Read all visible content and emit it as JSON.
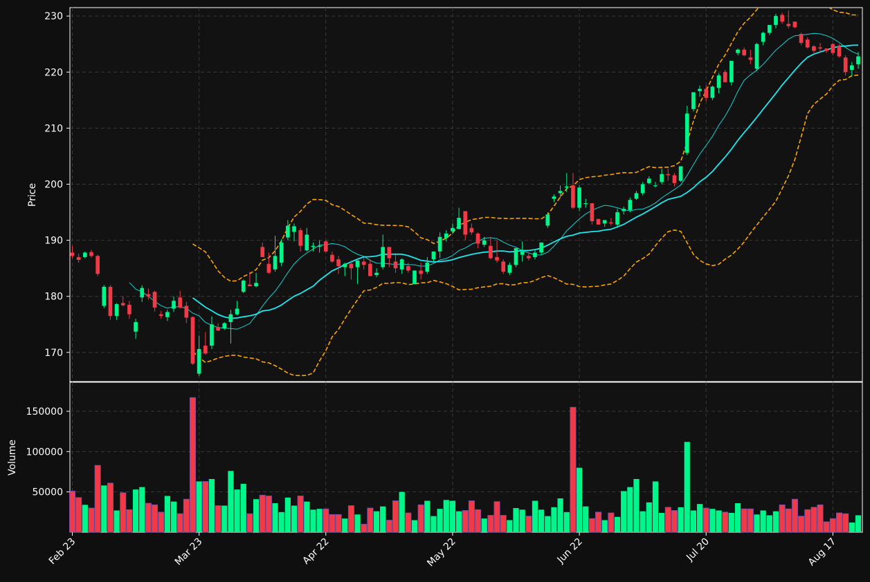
{
  "chart_data": {
    "type": "candlestick",
    "panels": {
      "price": {
        "ylabel": "Price",
        "ylim": [
          164.8,
          231.5
        ],
        "yticks": [
          170,
          180,
          190,
          200,
          210,
          220,
          230
        ]
      },
      "volume": {
        "ylabel": "Volume",
        "ylim": [
          0,
          186000
        ],
        "yticks": [
          50000,
          100000,
          150000
        ]
      }
    },
    "xticks": [
      {
        "index": 0,
        "label": "Feb 23"
      },
      {
        "index": 20,
        "label": "Mar 23"
      },
      {
        "index": 40,
        "label": "Apr 22"
      },
      {
        "index": 60,
        "label": "May 22"
      },
      {
        "index": 80,
        "label": "Jun 22"
      },
      {
        "index": 100,
        "label": "Jul 20"
      },
      {
        "index": 120,
        "label": "Aug 17"
      }
    ],
    "grid": true,
    "colors": {
      "up": "#00f58a",
      "down": "#f03a47",
      "ma_fast": "#17d4d4",
      "ma_slow": "#1ee8f0",
      "bands": "#ffa500",
      "background": "#121212",
      "grid": "#3a3a3a"
    },
    "candles": [
      [
        187.8,
        189.0,
        186.8,
        187.2
      ],
      [
        187.0,
        187.6,
        186.0,
        186.5
      ],
      [
        187.0,
        188.0,
        186.8,
        187.8
      ],
      [
        187.9,
        188.3,
        186.9,
        187.2
      ],
      [
        187.2,
        187.4,
        183.6,
        184.0
      ],
      [
        178.3,
        182.0,
        177.9,
        181.7
      ],
      [
        181.7,
        182.0,
        175.8,
        176.5
      ],
      [
        176.5,
        178.8,
        175.8,
        178.6
      ],
      [
        178.8,
        180.0,
        178.2,
        178.4
      ],
      [
        178.5,
        179.2,
        176.0,
        176.8
      ],
      [
        173.7,
        176.0,
        172.4,
        175.4
      ],
      [
        179.8,
        182.0,
        179.0,
        181.5
      ],
      [
        180.4,
        181.4,
        179.4,
        180.0
      ],
      [
        180.8,
        181.0,
        177.3,
        178.0
      ],
      [
        176.8,
        177.4,
        176.0,
        176.5
      ],
      [
        176.3,
        177.6,
        175.6,
        177.2
      ],
      [
        177.8,
        180.0,
        177.2,
        179.2
      ],
      [
        179.8,
        181.0,
        177.8,
        178.0
      ],
      [
        178.3,
        179.0,
        175.2,
        176.2
      ],
      [
        176.3,
        176.4,
        167.8,
        168.0
      ],
      [
        166.2,
        173.0,
        165.8,
        170.6
      ],
      [
        171.2,
        173.6,
        169.6,
        169.8
      ],
      [
        171.2,
        176.4,
        170.6,
        175.0
      ],
      [
        174.5,
        175.2,
        173.8,
        173.9
      ],
      [
        174.3,
        175.4,
        174.0,
        175.2
      ],
      [
        175.4,
        177.6,
        171.6,
        176.8
      ],
      [
        176.8,
        179.2,
        176.6,
        177.8
      ],
      [
        180.8,
        183.0,
        180.6,
        182.8
      ],
      [
        182.1,
        184.4,
        181.8,
        181.8
      ],
      [
        181.8,
        184.2,
        181.6,
        182.4
      ],
      [
        188.8,
        189.6,
        187.0,
        187.0
      ],
      [
        185.8,
        187.8,
        184.0,
        184.2
      ],
      [
        184.8,
        190.8,
        184.4,
        187.2
      ],
      [
        186.0,
        190.2,
        185.4,
        189.6
      ],
      [
        190.5,
        193.6,
        190.0,
        192.6
      ],
      [
        191.5,
        193.0,
        189.8,
        192.5
      ],
      [
        191.8,
        192.2,
        188.0,
        189.0
      ],
      [
        188.2,
        192.2,
        188.0,
        191.0
      ],
      [
        188.8,
        189.6,
        188.0,
        189.0
      ],
      [
        189.0,
        190.0,
        187.8,
        189.0
      ],
      [
        189.8,
        190.0,
        187.8,
        188.0
      ],
      [
        187.4,
        188.0,
        186.0,
        186.2
      ],
      [
        186.6,
        187.2,
        184.0,
        185.4
      ],
      [
        185.2,
        186.0,
        183.6,
        185.8
      ],
      [
        185.8,
        186.4,
        183.0,
        185.0
      ],
      [
        185.2,
        185.8,
        182.2,
        186.4
      ],
      [
        186.2,
        187.0,
        184.8,
        185.6
      ],
      [
        185.8,
        186.6,
        183.6,
        183.6
      ],
      [
        183.8,
        185.0,
        183.4,
        184.2
      ],
      [
        185.2,
        191.0,
        184.8,
        188.8
      ],
      [
        188.8,
        188.6,
        185.2,
        186.8
      ],
      [
        186.2,
        187.4,
        184.2,
        185.0
      ],
      [
        184.8,
        186.8,
        184.0,
        186.6
      ],
      [
        185.4,
        186.0,
        184.2,
        184.6
      ],
      [
        182.2,
        184.6,
        182.2,
        184.6
      ],
      [
        184.6,
        186.0,
        183.0,
        184.0
      ],
      [
        184.4,
        187.0,
        184.0,
        186.0
      ],
      [
        186.6,
        188.0,
        186.0,
        188.0
      ],
      [
        188.0,
        191.4,
        186.8,
        190.6
      ],
      [
        190.4,
        191.8,
        189.8,
        191.2
      ],
      [
        191.6,
        193.0,
        191.2,
        192.2
      ],
      [
        192.0,
        195.8,
        192.0,
        194.0
      ],
      [
        195.2,
        195.2,
        190.0,
        191.0
      ],
      [
        192.2,
        193.0,
        191.0,
        191.4
      ],
      [
        191.2,
        191.4,
        188.6,
        189.4
      ],
      [
        189.2,
        190.6,
        188.8,
        190.0
      ],
      [
        189.0,
        190.6,
        186.6,
        186.8
      ],
      [
        187.0,
        190.0,
        186.0,
        186.4
      ],
      [
        186.2,
        186.6,
        184.0,
        184.4
      ],
      [
        184.2,
        186.0,
        183.8,
        185.6
      ],
      [
        185.6,
        188.6,
        185.2,
        188.6
      ],
      [
        187.4,
        189.8,
        186.2,
        188.0
      ],
      [
        187.2,
        187.8,
        186.4,
        186.8
      ],
      [
        187.0,
        188.4,
        186.6,
        187.8
      ],
      [
        187.8,
        189.6,
        187.4,
        189.6
      ],
      [
        192.6,
        195.0,
        192.2,
        194.6
      ],
      [
        197.4,
        198.2,
        196.8,
        197.8
      ],
      [
        198.4,
        199.8,
        197.6,
        198.8
      ],
      [
        199.4,
        202.0,
        198.6,
        199.6
      ],
      [
        199.8,
        202.0,
        195.6,
        195.8
      ],
      [
        195.8,
        199.8,
        195.2,
        199.4
      ],
      [
        196.6,
        197.4,
        195.8,
        196.6
      ],
      [
        196.6,
        196.2,
        192.8,
        193.4
      ],
      [
        193.8,
        193.6,
        192.8,
        192.8
      ],
      [
        193.0,
        193.6,
        192.4,
        193.6
      ],
      [
        193.2,
        194.0,
        192.6,
        193.0
      ],
      [
        192.8,
        195.6,
        192.4,
        195.0
      ],
      [
        195.2,
        196.0,
        194.6,
        195.6
      ],
      [
        195.4,
        197.6,
        195.0,
        197.2
      ],
      [
        197.4,
        198.8,
        197.2,
        198.4
      ],
      [
        198.4,
        200.4,
        198.0,
        200.0
      ],
      [
        200.2,
        201.4,
        200.0,
        201.0
      ],
      [
        199.8,
        200.4,
        199.4,
        199.8
      ],
      [
        200.4,
        202.8,
        200.0,
        201.8
      ],
      [
        201.8,
        202.8,
        200.6,
        201.6
      ],
      [
        201.6,
        202.0,
        199.6,
        200.2
      ],
      [
        200.6,
        203.2,
        200.4,
        203.2
      ],
      [
        205.6,
        214.0,
        205.2,
        212.6
      ],
      [
        213.4,
        216.4,
        213.0,
        216.4
      ],
      [
        216.6,
        217.6,
        215.6,
        217.0
      ],
      [
        217.0,
        217.6,
        214.8,
        215.4
      ],
      [
        215.4,
        217.6,
        215.0,
        217.4
      ],
      [
        217.2,
        219.8,
        216.2,
        219.4
      ],
      [
        220.0,
        220.4,
        218.2,
        218.2
      ],
      [
        218.2,
        222.0,
        217.6,
        222.0
      ],
      [
        223.4,
        224.2,
        223.0,
        224.0
      ],
      [
        224.0,
        224.4,
        222.8,
        223.0
      ],
      [
        222.6,
        224.0,
        221.4,
        222.2
      ],
      [
        220.6,
        225.2,
        220.2,
        225.0
      ],
      [
        225.4,
        227.2,
        224.8,
        227.0
      ],
      [
        227.0,
        228.4,
        226.6,
        228.4
      ],
      [
        228.4,
        230.4,
        227.8,
        230.0
      ],
      [
        230.2,
        230.6,
        228.6,
        229.0
      ],
      [
        228.6,
        231.0,
        227.8,
        228.2
      ],
      [
        229.0,
        228.8,
        227.8,
        228.0
      ],
      [
        226.8,
        227.0,
        224.8,
        225.2
      ],
      [
        225.8,
        226.2,
        224.2,
        224.4
      ],
      [
        224.6,
        224.8,
        223.4,
        223.8
      ],
      [
        224.4,
        225.2,
        223.6,
        224.2
      ],
      [
        224.2,
        224.0,
        223.4,
        223.8
      ],
      [
        225.0,
        225.2,
        223.0,
        223.4
      ],
      [
        224.6,
        225.0,
        222.6,
        222.8
      ],
      [
        222.6,
        223.0,
        219.4,
        220.0
      ],
      [
        220.4,
        221.8,
        219.2,
        221.2
      ],
      [
        221.4,
        223.6,
        220.6,
        222.8
      ]
    ],
    "volume": [
      51000,
      43000,
      34000,
      30000,
      83000,
      58000,
      61000,
      27000,
      49000,
      28000,
      53000,
      56000,
      36000,
      34000,
      25000,
      45000,
      38000,
      23000,
      41000,
      167000,
      63000,
      63000,
      66000,
      33000,
      33000,
      76000,
      53000,
      60000,
      23000,
      41000,
      46000,
      45000,
      36000,
      25000,
      43000,
      33000,
      45000,
      38000,
      28000,
      29000,
      29000,
      22000,
      22000,
      17000,
      33000,
      22000,
      10000,
      30000,
      26000,
      32000,
      15000,
      39000,
      50000,
      24000,
      15000,
      34000,
      39000,
      20000,
      29000,
      40000,
      39000,
      26000,
      27000,
      39000,
      28000,
      17000,
      21000,
      38000,
      21000,
      15000,
      30000,
      28000,
      20000,
      39000,
      28000,
      20000,
      31000,
      42000,
      25000,
      155000,
      80000,
      32000,
      17000,
      25000,
      15000,
      24000,
      19000,
      51000,
      56000,
      66000,
      26000,
      37000,
      63000,
      24000,
      31000,
      27000,
      31000,
      112000,
      27000,
      35000,
      30000,
      29000,
      27000,
      25000,
      24000,
      36000,
      29000,
      29000,
      22000,
      27000,
      21000,
      26000,
      34000,
      29000,
      41000,
      20000,
      28000,
      31000,
      34000,
      13000,
      17000,
      24000,
      23000,
      12000,
      21000
    ],
    "ma_fast": [
      null,
      null,
      null,
      null,
      null,
      null,
      null,
      null,
      null,
      null,
      null,
      null,
      null,
      null,
      null,
      null,
      null,
      null,
      null,
      null,
      null,
      null,
      null,
      null,
      null,
      null,
      null,
      null,
      null,
      null,
      null,
      null,
      null,
      null,
      null,
      null,
      null,
      null,
      null,
      null,
      null,
      null,
      null,
      null,
      null,
      null,
      null,
      null,
      null,
      null,
      null,
      null,
      null,
      null,
      null,
      null,
      null,
      null,
      null,
      null,
      null,
      null,
      null,
      null,
      null,
      null,
      null,
      null,
      null,
      null,
      null,
      null,
      null,
      null,
      null,
      null,
      null,
      null,
      null,
      null,
      null,
      null,
      null,
      null,
      null,
      null,
      null,
      null,
      null,
      null,
      null,
      null,
      null,
      null,
      null,
      null,
      null,
      null,
      null,
      null,
      null,
      null,
      null,
      null,
      null,
      null,
      null,
      null,
      null,
      null,
      null,
      null,
      null,
      null,
      null,
      null,
      null,
      null,
      null,
      null,
      null,
      null,
      null,
      null,
      null
    ],
    "ma_slow": [],
    "band_upper": [],
    "band_lower": []
  }
}
